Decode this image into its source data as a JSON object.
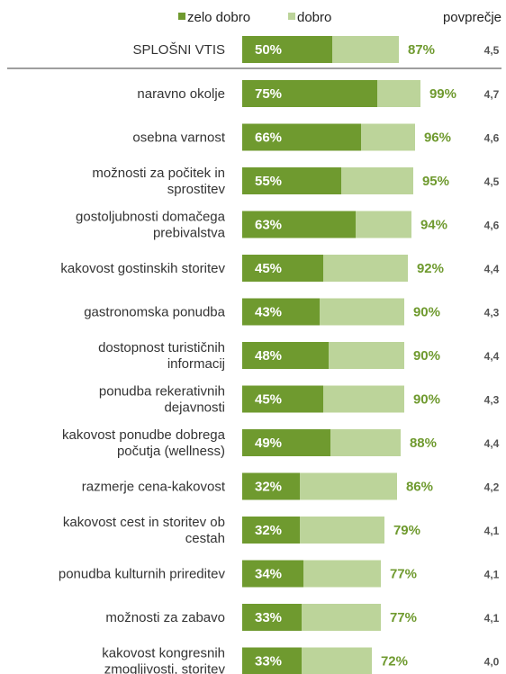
{
  "chart_data": {
    "type": "bar",
    "stacked": true,
    "orientation": "horizontal",
    "legend": {
      "placement": "top",
      "series_labels": [
        "zelo dobro",
        "dobro"
      ],
      "average_header": "povprečje"
    },
    "colors": {
      "zelo_dobro": "#6f9a2f",
      "dobro": "#bcd49a",
      "total_text": "#6f9a2f",
      "separator": "#7f7f7f"
    },
    "xlim": [
      0,
      100
    ],
    "grid": false,
    "summary": {
      "category": "SPLOŠNI VTIS",
      "zelo_dobro": 50,
      "total": 87,
      "average": "4,5"
    },
    "categories": [
      [
        "naravno okolje"
      ],
      [
        "osebna varnost"
      ],
      [
        "možnosti za počitek in",
        "sprostitev"
      ],
      [
        "gostoljubnosti domačega",
        "prebivalstva"
      ],
      [
        "kakovost gostinskih storitev"
      ],
      [
        "gastronomska ponudba"
      ],
      [
        "dostopnost turističnih",
        "informacij"
      ],
      [
        "ponudba rekerativnih",
        "dejavnosti"
      ],
      [
        "kakovost ponudbe dobrega",
        "počutja (wellness)"
      ],
      [
        "razmerje cena-kakovost"
      ],
      [
        "kakovost cest in storitev ob",
        "cestah"
      ],
      [
        "ponudba kulturnih prireditev"
      ],
      [
        "možnosti za zabavo"
      ],
      [
        "kakovost kongresnih",
        "zmogljivosti, storitev"
      ]
    ],
    "series": [
      {
        "name": "zelo dobro",
        "values": [
          75,
          66,
          55,
          63,
          45,
          43,
          48,
          45,
          49,
          32,
          32,
          34,
          33,
          33
        ]
      },
      {
        "name": "dobro",
        "values": [
          24,
          30,
          40,
          31,
          47,
          47,
          42,
          45,
          39,
          54,
          47,
          43,
          44,
          39
        ]
      }
    ],
    "totals": [
      99,
      96,
      95,
      94,
      92,
      90,
      90,
      90,
      88,
      86,
      79,
      77,
      77,
      72
    ],
    "averages": [
      "4,7",
      "4,6",
      "4,5",
      "4,6",
      "4,4",
      "4,3",
      "4,4",
      "4,3",
      "4,4",
      "4,2",
      "4,1",
      "4,1",
      "4,1",
      "4,0"
    ]
  }
}
